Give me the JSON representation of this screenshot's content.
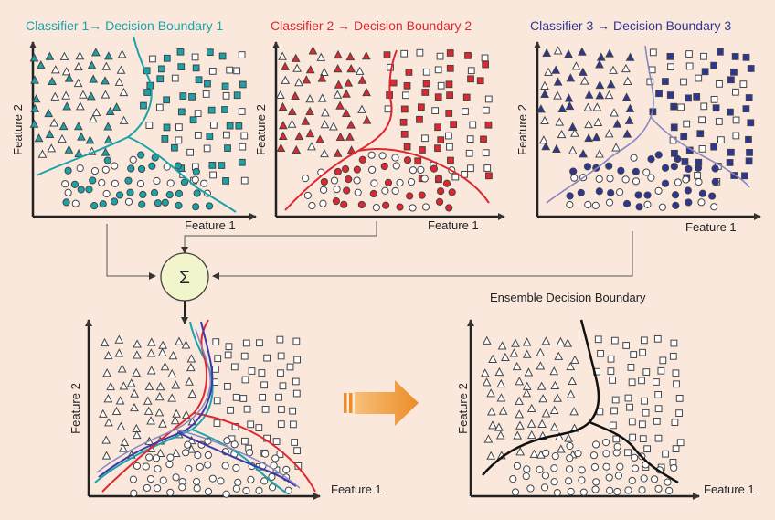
{
  "panels": [
    {
      "title": "Classifier 1→ Decision Boundary 1",
      "color": "#1aa3a8",
      "xlabel": "Feature 1",
      "ylabel": "Feature 2"
    },
    {
      "title": "Classifier 2 → Decision Boundary 2",
      "color": "#e0262e",
      "xlabel": "Feature 1",
      "ylabel": "Feature 2"
    },
    {
      "title": "Classifier 3 → Decision Boundary 3",
      "color": "#2e3592",
      "xlabel": "Feature 1",
      "ylabel": "Feature 2"
    }
  ],
  "combined": {
    "xlabel": "Feature 1",
    "ylabel": "Feature 2"
  },
  "ensemble": {
    "title": "Ensemble Decision Boundary",
    "xlabel": "Feature 1",
    "ylabel": "Feature 2"
  },
  "sum_symbol": "Σ",
  "colors": {
    "background": "#fbe8dc",
    "sum_fill": "#f2f5cc",
    "arrow": "#f0a040",
    "marker_stroke": "#555555",
    "lines": "#333333"
  }
}
